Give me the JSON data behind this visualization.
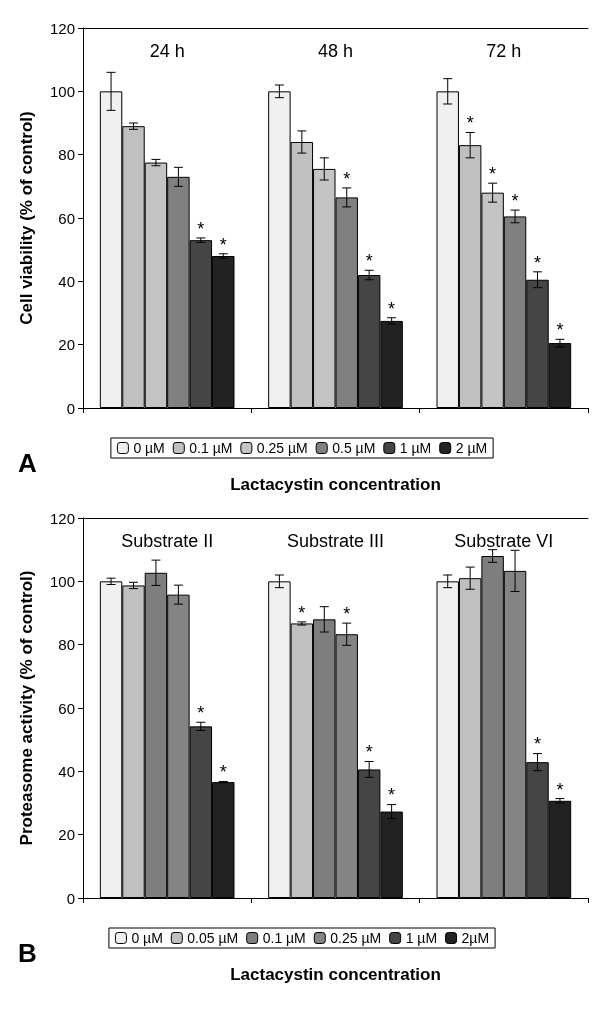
{
  "chart_data": [
    {
      "type": "bar",
      "categories": [
        "24 h",
        "48 h",
        "72 h"
      ],
      "ylabel": "Cell viability (% of control)",
      "xlabel": "Lactacystin concentration",
      "annotations": [
        "A"
      ],
      "ylim": [
        0,
        120
      ],
      "yticks": [
        0,
        20,
        40,
        60,
        80,
        100,
        120
      ],
      "grid": false,
      "legend": "bottom",
      "series": [
        {
          "name": "0 µM",
          "color": "#f0f0f0",
          "values": [
            100,
            100,
            100
          ],
          "errors": [
            6,
            2,
            4
          ],
          "value_labels": [
            null,
            null,
            null
          ]
        },
        {
          "name": "0.1 µM",
          "color": "#c0c0c0",
          "values": [
            89,
            84,
            83
          ],
          "errors": [
            1,
            3.5,
            4
          ],
          "value_labels": [
            null,
            null,
            "*"
          ]
        },
        {
          "name": "0.25 µM",
          "color": "#c4c4c4",
          "values": [
            77.5,
            75.5,
            68
          ],
          "errors": [
            1,
            3.5,
            3
          ],
          "value_labels": [
            null,
            null,
            "*"
          ]
        },
        {
          "name": "0.5 µM",
          "color": "#808080",
          "values": [
            73,
            66.5,
            60.5
          ],
          "errors": [
            3,
            3,
            2
          ],
          "value_labels": [
            null,
            "*",
            "*"
          ]
        },
        {
          "name": "1 µM",
          "color": "#454545",
          "values": [
            53,
            42,
            40.5
          ],
          "errors": [
            0.7,
            1.5,
            2.5
          ],
          "value_labels": [
            "*",
            "*",
            "*"
          ]
        },
        {
          "name": "2 µM",
          "color": "#222222",
          "values": [
            48,
            27.5,
            20.5
          ],
          "errors": [
            0.7,
            1,
            1.2
          ],
          "value_labels": [
            "*",
            "*",
            "*"
          ]
        }
      ]
    },
    {
      "type": "bar",
      "categories": [
        "Substrate II",
        "Substrate III",
        "Substrate VI"
      ],
      "ylabel": "Proteasome activity (% of control)",
      "xlabel": "Lactacystin concentration",
      "annotations": [
        "B"
      ],
      "ylim": [
        0,
        120
      ],
      "yticks": [
        0,
        20,
        40,
        60,
        80,
        100,
        120
      ],
      "grid": false,
      "legend": "bottom",
      "series": [
        {
          "name": "0 µM",
          "color": "#f0f0f0",
          "values": [
            100,
            100,
            100
          ],
          "errors": [
            1,
            2,
            2
          ],
          "value_labels": [
            null,
            null,
            null
          ]
        },
        {
          "name": "0.05 µM",
          "color": "#c0c0c0",
          "values": [
            98.7,
            86.7,
            101
          ],
          "errors": [
            1,
            0.5,
            3.5
          ],
          "value_labels": [
            null,
            "*",
            null
          ]
        },
        {
          "name": "0.1 µM",
          "color": "#7e7e7e",
          "values": [
            102.7,
            88,
            108
          ],
          "errors": [
            4,
            4,
            2
          ],
          "value_labels": [
            null,
            null,
            null
          ]
        },
        {
          "name": "0.25 µM",
          "color": "#848484",
          "values": [
            95.8,
            83.3,
            103.3
          ],
          "errors": [
            3,
            3.5,
            6.5
          ],
          "value_labels": [
            null,
            "*",
            null
          ]
        },
        {
          "name": "1 µM",
          "color": "#454545",
          "values": [
            54.2,
            40.6,
            42.9
          ],
          "errors": [
            1.3,
            2.5,
            2.7
          ],
          "value_labels": [
            "*",
            "*",
            "*"
          ]
        },
        {
          "name": "2µM",
          "color": "#222222",
          "values": [
            36.6,
            27.3,
            30.7
          ],
          "errors": [
            0.2,
            2.2,
            0.7
          ],
          "value_labels": [
            "*",
            "*",
            "*"
          ]
        }
      ]
    }
  ]
}
